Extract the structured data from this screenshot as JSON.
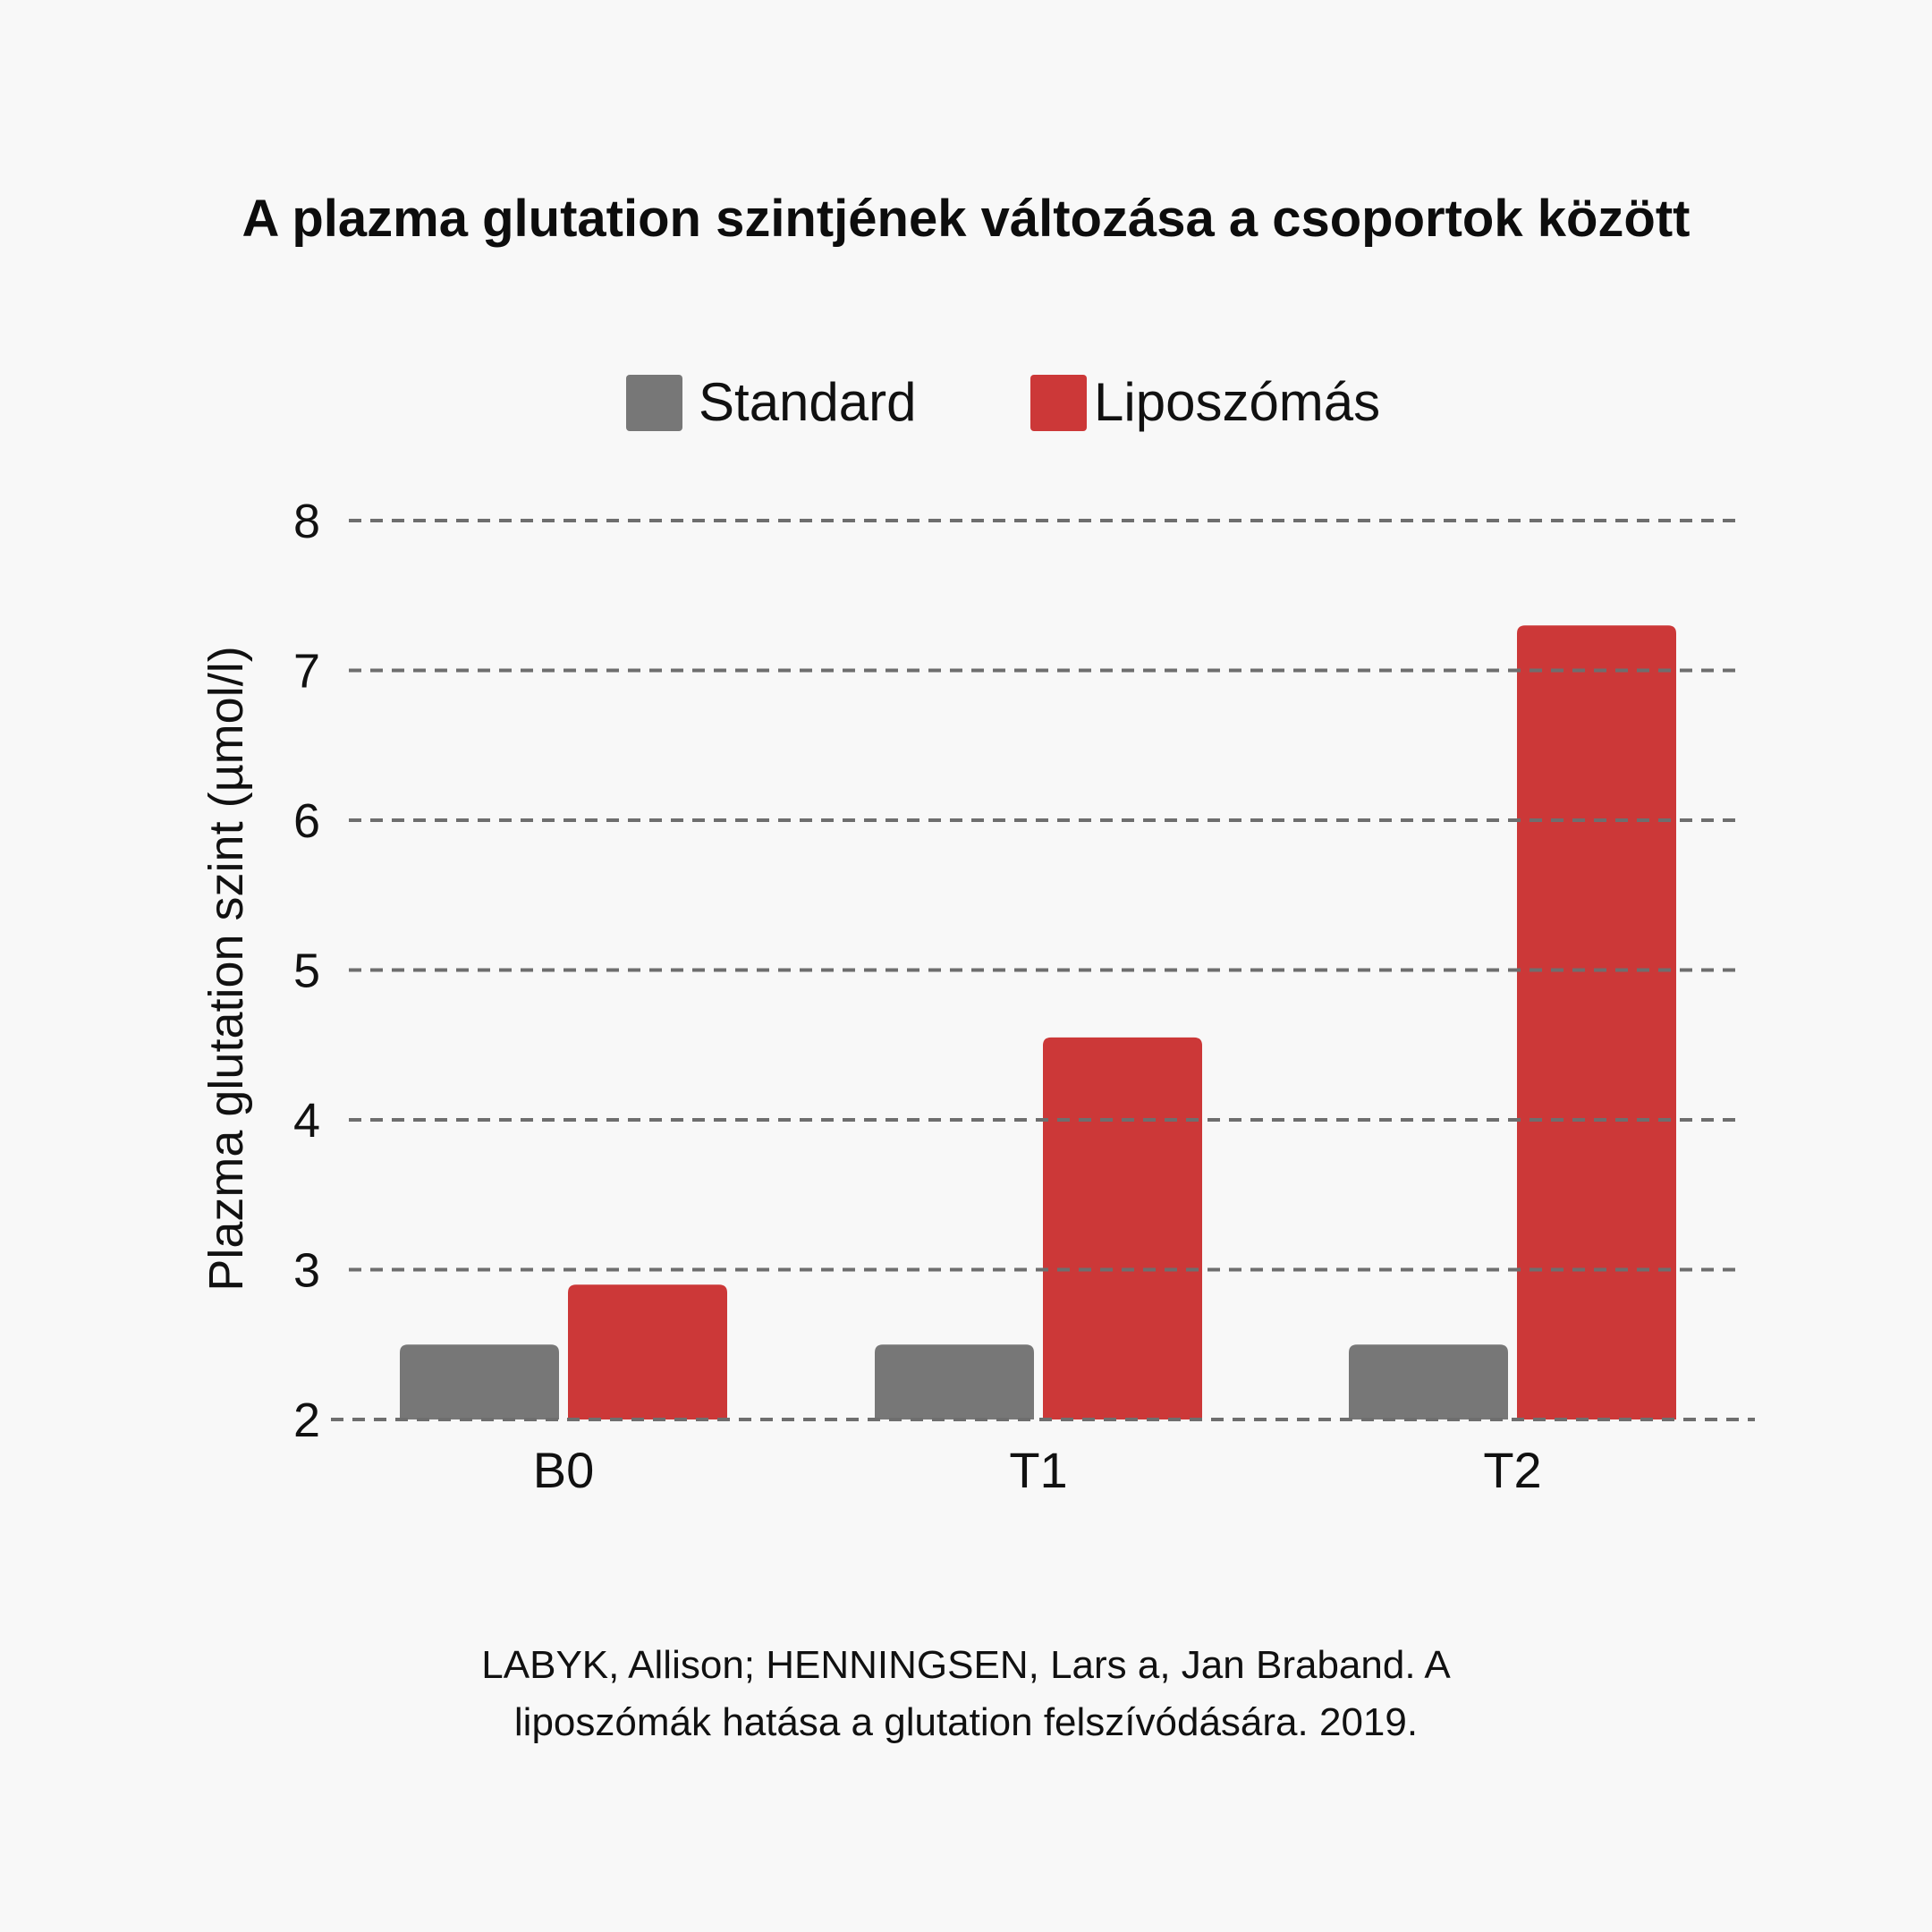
{
  "chart_data": {
    "type": "bar",
    "title": "A plazma glutation szintjének változása a csoportok között",
    "ylabel": "Plazma glutation szint (µmol/l)",
    "xlabel": "",
    "categories": [
      "B0",
      "T1",
      "T2"
    ],
    "series": [
      {
        "name": "Standard",
        "values": [
          2.5,
          2.5,
          2.5
        ],
        "color": "#777777"
      },
      {
        "name": "Liposzómás",
        "values": [
          2.9,
          4.55,
          7.3
        ],
        "color": "#cc3838"
      }
    ],
    "ylim": [
      2,
      8
    ],
    "yticks": [
      "2",
      "3",
      "4",
      "5",
      "6",
      "7",
      "8"
    ],
    "grid": true,
    "legend_position": "top-center"
  },
  "source": {
    "line1": "LABYK, Allison; HENNINGSEN, Lars a, Jan Braband. A",
    "line2": "liposzómák hatása a glutation felszívódására. 2019."
  }
}
